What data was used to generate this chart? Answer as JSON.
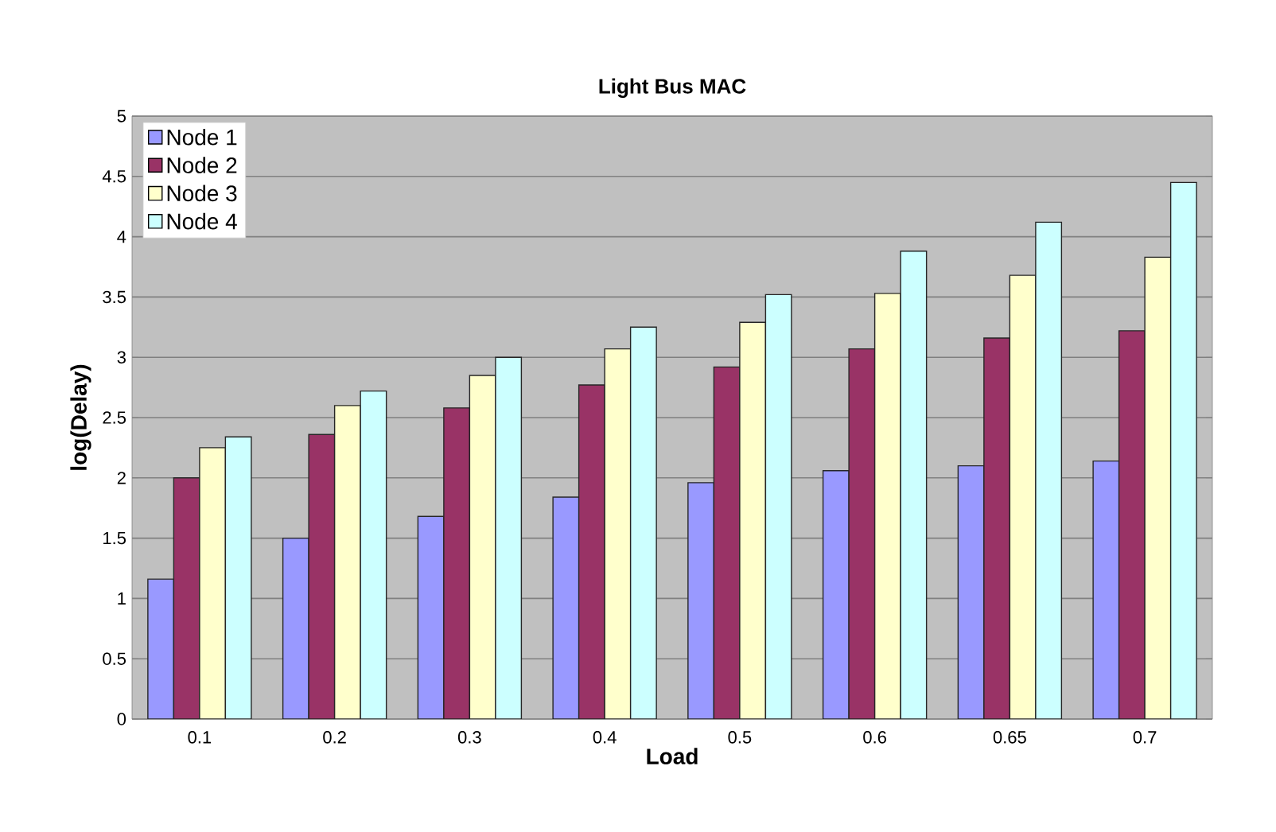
{
  "chart_data": {
    "type": "bar",
    "title": "Light Bus MAC",
    "xlabel": "Load",
    "ylabel": "log(Delay)",
    "categories": [
      "0.1",
      "0.2",
      "0.3",
      "0.4",
      "0.5",
      "0.6",
      "0.65",
      "0.7"
    ],
    "series": [
      {
        "name": "Node 1",
        "color": "#9999ff",
        "values": [
          1.16,
          1.5,
          1.68,
          1.84,
          1.96,
          2.06,
          2.1,
          2.14
        ]
      },
      {
        "name": "Node 2",
        "color": "#993366",
        "values": [
          2.0,
          2.36,
          2.58,
          2.77,
          2.92,
          3.07,
          3.16,
          3.22
        ]
      },
      {
        "name": "Node 3",
        "color": "#ffffcc",
        "values": [
          2.25,
          2.6,
          2.85,
          3.07,
          3.29,
          3.53,
          3.68,
          3.83
        ]
      },
      {
        "name": "Node 4",
        "color": "#ccffff",
        "values": [
          2.34,
          2.72,
          3.0,
          3.25,
          3.52,
          3.88,
          4.12,
          4.45
        ]
      }
    ],
    "ylim": [
      0,
      5
    ],
    "yticks": [
      0,
      0.5,
      1,
      1.5,
      2,
      2.5,
      3,
      3.5,
      4,
      4.5,
      5
    ],
    "grid": "y",
    "legend": "top left"
  }
}
